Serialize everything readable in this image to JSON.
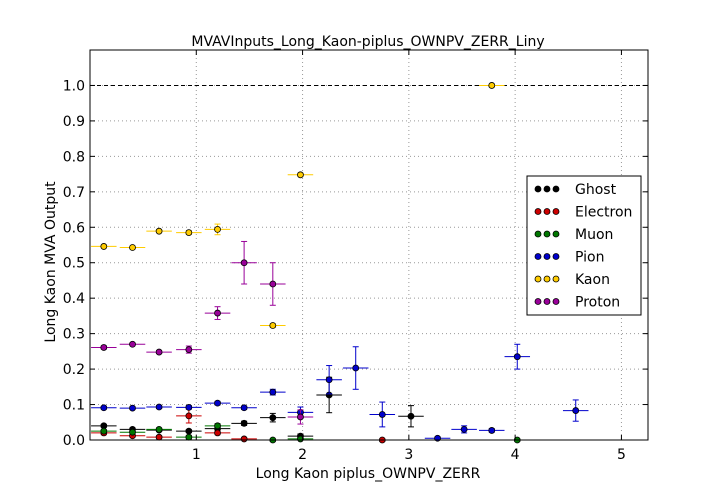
{
  "chart_data": {
    "type": "scatter",
    "title": "MVAVInputs_Long_Kaon-piplus_OWNPV_ZERR_Liny",
    "xlabel": "Long Kaon piplus_OWNPV_ZERR",
    "ylabel": "Long Kaon MVA Output",
    "xlim": [
      0,
      5.25
    ],
    "ylim": [
      0,
      1.1
    ],
    "x_ticks": [
      1,
      2,
      3,
      4,
      5
    ],
    "x_tick_labels": [
      "1",
      "2",
      "3",
      "4",
      "5"
    ],
    "y_ticks": [
      0.0,
      0.1,
      0.2,
      0.3,
      0.4,
      0.5,
      0.6,
      0.7,
      0.8,
      0.9,
      1.0
    ],
    "y_tick_labels": [
      "0.0",
      "0.1",
      "0.2",
      "0.3",
      "0.4",
      "0.5",
      "0.6",
      "0.7",
      "0.8",
      "0.9",
      "1.0"
    ],
    "grid": true,
    "reference_line": 1.0,
    "legend_placement": "center-right",
    "series": [
      {
        "name": "Ghost",
        "color": "#000000",
        "points": [
          [
            0.13,
            0.04,
            0.12,
            0.004
          ],
          [
            0.4,
            0.03,
            0.12,
            0.004
          ],
          [
            0.65,
            0.028,
            0.12,
            0.004
          ],
          [
            0.93,
            0.025,
            0.12,
            0.004
          ],
          [
            1.2,
            0.032,
            0.12,
            0.004
          ],
          [
            1.45,
            0.047,
            0.12,
            0.006
          ],
          [
            1.72,
            0.063,
            0.12,
            0.012
          ],
          [
            1.98,
            0.011,
            0.12,
            0.006
          ],
          [
            2.25,
            0.127,
            0.12,
            0.05
          ],
          [
            3.02,
            0.067,
            0.12,
            0.03
          ]
        ]
      },
      {
        "name": "Electron",
        "color": "#cc0000",
        "points": [
          [
            0.13,
            0.02,
            0.12,
            0.005
          ],
          [
            0.4,
            0.012,
            0.12,
            0.004
          ],
          [
            0.65,
            0.008,
            0.12,
            0.004
          ],
          [
            0.93,
            0.068,
            0.12,
            0.02
          ],
          [
            1.2,
            0.02,
            0.12,
            0.005
          ],
          [
            1.45,
            0.003,
            0.12,
            0.003
          ],
          [
            2.75,
            0.0,
            0.12,
            0.003
          ]
        ]
      },
      {
        "name": "Muon",
        "color": "#007700",
        "points": [
          [
            0.13,
            0.025,
            0.12,
            0.004
          ],
          [
            0.4,
            0.022,
            0.12,
            0.004
          ],
          [
            0.65,
            0.03,
            0.12,
            0.004
          ],
          [
            0.93,
            0.008,
            0.12,
            0.005
          ],
          [
            1.2,
            0.04,
            0.12,
            0.006
          ],
          [
            1.72,
            0.0,
            0.12,
            0.003
          ],
          [
            1.98,
            0.003,
            0.12,
            0.003
          ],
          [
            4.02,
            0.0,
            0.12,
            0.003
          ]
        ]
      },
      {
        "name": "Pion",
        "color": "#0000cc",
        "points": [
          [
            0.13,
            0.091,
            0.12,
            0.004
          ],
          [
            0.4,
            0.09,
            0.12,
            0.004
          ],
          [
            0.65,
            0.093,
            0.12,
            0.004
          ],
          [
            0.93,
            0.092,
            0.12,
            0.005
          ],
          [
            1.2,
            0.104,
            0.12,
            0.005
          ],
          [
            1.45,
            0.091,
            0.12,
            0.005
          ],
          [
            1.72,
            0.135,
            0.12,
            0.008
          ],
          [
            1.98,
            0.078,
            0.12,
            0.015
          ],
          [
            2.25,
            0.17,
            0.12,
            0.04
          ],
          [
            2.5,
            0.203,
            0.12,
            0.06
          ],
          [
            2.75,
            0.072,
            0.12,
            0.035
          ],
          [
            3.27,
            0.005,
            0.12,
            0.004
          ],
          [
            3.52,
            0.03,
            0.12,
            0.01
          ],
          [
            3.78,
            0.027,
            0.12,
            0.005
          ],
          [
            4.02,
            0.235,
            0.12,
            0.035
          ],
          [
            4.57,
            0.083,
            0.12,
            0.03
          ]
        ]
      },
      {
        "name": "Kaon",
        "color": "#ffcc00",
        "points": [
          [
            0.13,
            0.546,
            0.12,
            0.004
          ],
          [
            0.4,
            0.543,
            0.12,
            0.004
          ],
          [
            0.65,
            0.589,
            0.12,
            0.004
          ],
          [
            0.93,
            0.585,
            0.12,
            0.005
          ],
          [
            1.2,
            0.594,
            0.12,
            0.015
          ],
          [
            1.72,
            0.323,
            0.12,
            0.005
          ],
          [
            1.98,
            0.748,
            0.12,
            0.005
          ],
          [
            3.78,
            1.0,
            0.12,
            0.003
          ]
        ]
      },
      {
        "name": "Proton",
        "color": "#990099",
        "points": [
          [
            0.13,
            0.261,
            0.12,
            0.004
          ],
          [
            0.4,
            0.27,
            0.12,
            0.004
          ],
          [
            0.65,
            0.248,
            0.12,
            0.004
          ],
          [
            0.93,
            0.255,
            0.12,
            0.01
          ],
          [
            1.2,
            0.358,
            0.12,
            0.018
          ],
          [
            1.45,
            0.5,
            0.12,
            0.06
          ],
          [
            1.72,
            0.44,
            0.12,
            0.06
          ],
          [
            1.98,
            0.065,
            0.12,
            0.02
          ]
        ]
      }
    ]
  }
}
